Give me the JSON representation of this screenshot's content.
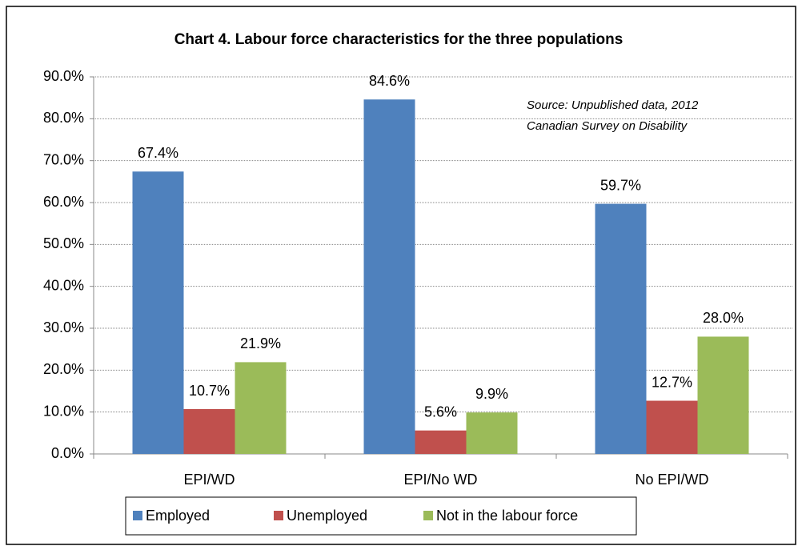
{
  "chart_data": {
    "type": "bar",
    "title": "Chart 4. Labour force characteristics for the three populations",
    "annotation": [
      "Source: Unpublished data, 2012",
      "Canadian Survey on Disability"
    ],
    "categories": [
      "EPI/WD",
      "EPI/No WD",
      "No EPI/WD"
    ],
    "series": [
      {
        "name": "Employed",
        "color": "#4f81bd",
        "values": [
          67.4,
          84.6,
          59.7
        ],
        "value_labels": [
          "67.4%",
          "84.6%",
          "59.7%"
        ]
      },
      {
        "name": "Unemployed",
        "color": "#c0504d",
        "values": [
          10.7,
          5.6,
          12.7
        ],
        "value_labels": [
          "10.7%",
          "5.6%",
          "12.7%"
        ]
      },
      {
        "name": "Not in the labour force",
        "color": "#9bbb59",
        "values": [
          21.9,
          9.9,
          28.0
        ],
        "value_labels": [
          "21.9%",
          "9.9%",
          "28.0%"
        ]
      }
    ],
    "ylim": [
      0,
      90
    ],
    "yticks": [
      {
        "value": 0,
        "label": "0.0%"
      },
      {
        "value": 10,
        "label": "10.0%"
      },
      {
        "value": 20,
        "label": "20.0%"
      },
      {
        "value": 30,
        "label": "30.0%"
      },
      {
        "value": 40,
        "label": "40.0%"
      },
      {
        "value": 50,
        "label": "50.0%"
      },
      {
        "value": 60,
        "label": "60.0%"
      },
      {
        "value": 70,
        "label": "70.0%"
      },
      {
        "value": 80,
        "label": "80.0%"
      },
      {
        "value": 90,
        "label": "90.0%"
      }
    ],
    "grid": true,
    "legend": "bottom"
  }
}
